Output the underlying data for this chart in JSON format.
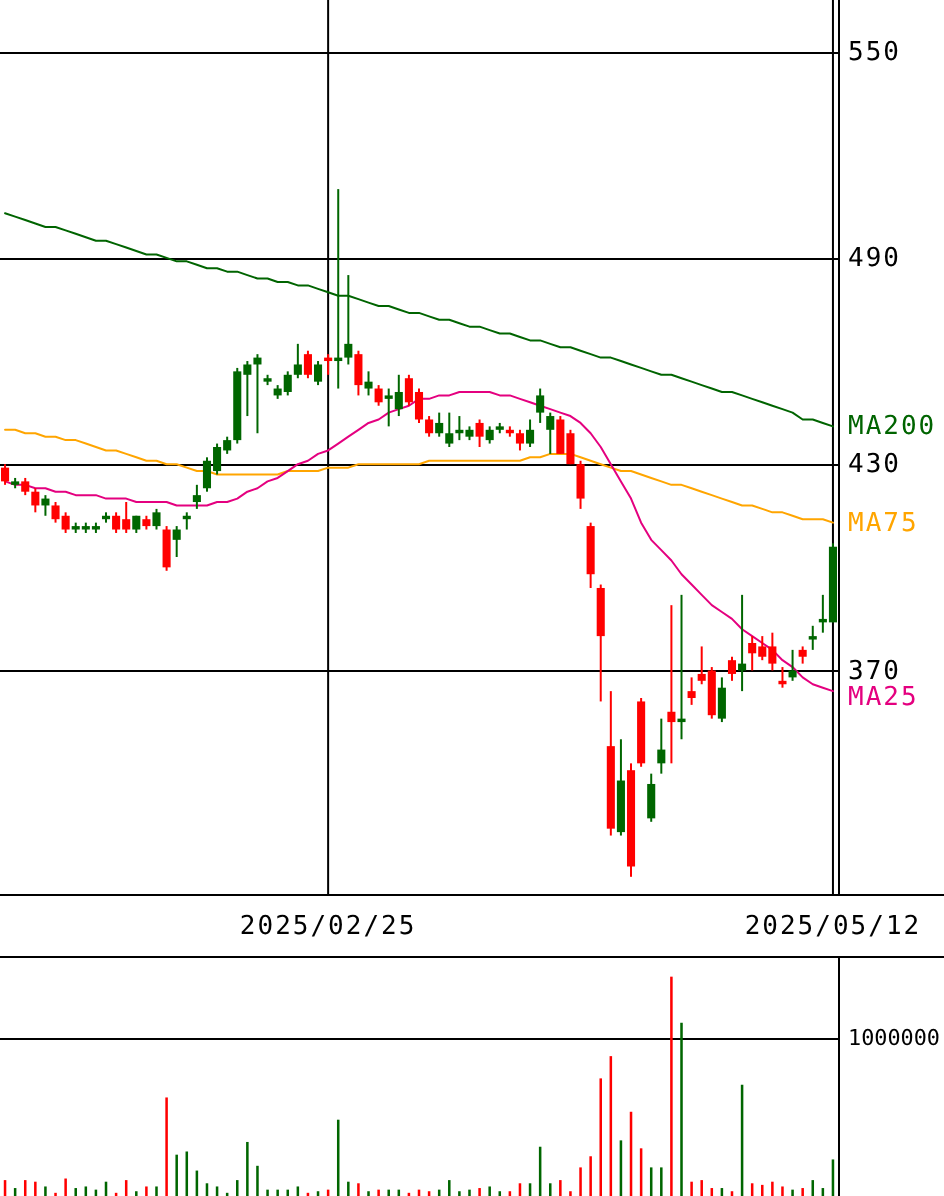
{
  "chart_data": [
    {
      "type": "candlestick",
      "categories": [
        null,
        null,
        null,
        null,
        null,
        null,
        null,
        null,
        null,
        null,
        null,
        null,
        null,
        null,
        null,
        null,
        null,
        null,
        null,
        null,
        null,
        null,
        null,
        null,
        null,
        null,
        null,
        null,
        null,
        null,
        null,
        null,
        "2025/02/25",
        null,
        null,
        null,
        null,
        null,
        null,
        null,
        null,
        null,
        null,
        null,
        null,
        null,
        null,
        null,
        null,
        null,
        null,
        null,
        null,
        null,
        null,
        null,
        null,
        null,
        null,
        null,
        null,
        null,
        null,
        null,
        null,
        null,
        null,
        null,
        null,
        null,
        null,
        null,
        null,
        null,
        null,
        null,
        null,
        null,
        null,
        null,
        null,
        null,
        "2025/05/12"
      ],
      "ohlc": [
        [
          429,
          430,
          424,
          425
        ],
        [
          424,
          426,
          423,
          425
        ],
        [
          425,
          426,
          421,
          422
        ],
        [
          422,
          423,
          416,
          418
        ],
        [
          418,
          421,
          415,
          420
        ],
        [
          418,
          419,
          413,
          414
        ],
        [
          415,
          416,
          410,
          411
        ],
        [
          411,
          413,
          410,
          412
        ],
        [
          411,
          413,
          410,
          412
        ],
        [
          411,
          413,
          410,
          412
        ],
        [
          414,
          416,
          413,
          415
        ],
        [
          415,
          416,
          410,
          411
        ],
        [
          414,
          419,
          410,
          411
        ],
        [
          411,
          415,
          410,
          415
        ],
        [
          414,
          415,
          411,
          412
        ],
        [
          412,
          417,
          411,
          416
        ],
        [
          411,
          412,
          399,
          400
        ],
        [
          408,
          412,
          403,
          411
        ],
        [
          414,
          416,
          411,
          415
        ],
        [
          419,
          424,
          417,
          421
        ],
        [
          423,
          432,
          422,
          431
        ],
        [
          428,
          436,
          427,
          435
        ],
        [
          434,
          438,
          433,
          437
        ],
        [
          437,
          458,
          436,
          457
        ],
        [
          456,
          460,
          444,
          459
        ],
        [
          459,
          462,
          439,
          461
        ],
        [
          454,
          456,
          453,
          455
        ],
        [
          450,
          453,
          449,
          452
        ],
        [
          451,
          457,
          450,
          456
        ],
        [
          456,
          465,
          455,
          459
        ],
        [
          462,
          463,
          455,
          456
        ],
        [
          454,
          460,
          453,
          459
        ],
        [
          461,
          462,
          456,
          460
        ],
        [
          460,
          510,
          452,
          461
        ],
        [
          461,
          485,
          459,
          465
        ],
        [
          462,
          463,
          450,
          453
        ],
        [
          452,
          457,
          450,
          454
        ],
        [
          452,
          453,
          447,
          448
        ],
        [
          449,
          452,
          441,
          450
        ],
        [
          446,
          456,
          444,
          451
        ],
        [
          455,
          456,
          447,
          448
        ],
        [
          451,
          452,
          442,
          443
        ],
        [
          443,
          444,
          438,
          439
        ],
        [
          439,
          445,
          438,
          442
        ],
        [
          436,
          445,
          435,
          439
        ],
        [
          439,
          444,
          437,
          440
        ],
        [
          438,
          441,
          437,
          440
        ],
        [
          442,
          443,
          435,
          438
        ],
        [
          437,
          441,
          436,
          440
        ],
        [
          440,
          442,
          439,
          441
        ],
        [
          440,
          441,
          438,
          439
        ],
        [
          439,
          440,
          434,
          436
        ],
        [
          436,
          443,
          435,
          440
        ],
        [
          445,
          452,
          442,
          450
        ],
        [
          440,
          445,
          433,
          444
        ],
        [
          443,
          444,
          433,
          433
        ],
        [
          439,
          440,
          430,
          430
        ],
        [
          430,
          431,
          417,
          420
        ],
        [
          412,
          413,
          394,
          398
        ],
        [
          394,
          395,
          361,
          380
        ],
        [
          348,
          364,
          322,
          324
        ],
        [
          323,
          350,
          322,
          338
        ],
        [
          341,
          343,
          310,
          313
        ],
        [
          361,
          362,
          342,
          343
        ],
        [
          327,
          340,
          326,
          337
        ],
        [
          343,
          356,
          340,
          347
        ],
        [
          358,
          389,
          343,
          355
        ],
        [
          355,
          392,
          350,
          356
        ],
        [
          364,
          368,
          360,
          362
        ],
        [
          369,
          377,
          366,
          367
        ],
        [
          370,
          371,
          356,
          357
        ],
        [
          356,
          368,
          355,
          365
        ],
        [
          373,
          374,
          367,
          369
        ],
        [
          370,
          392,
          364,
          372
        ],
        [
          378,
          380,
          370,
          375
        ],
        [
          377,
          380,
          373,
          374
        ],
        [
          377,
          381,
          370,
          372
        ],
        [
          367,
          371,
          365,
          366
        ],
        [
          368,
          376,
          367,
          370
        ],
        [
          376,
          377,
          372,
          374
        ],
        [
          379,
          383,
          376,
          380
        ],
        [
          384,
          392,
          381,
          385
        ],
        [
          384,
          407,
          384,
          406
        ]
      ],
      "colors": [
        "#ff0000",
        "#006600",
        "#ff0000",
        "#ff0000",
        "#006600",
        "#ff0000",
        "#ff0000",
        "#006600",
        "#006600",
        "#006600",
        "#006600",
        "#ff0000",
        "#ff0000",
        "#006600",
        "#ff0000",
        "#006600",
        "#ff0000",
        "#006600",
        "#006600",
        "#006600",
        "#006600",
        "#006600",
        "#006600",
        "#006600",
        "#006600",
        "#006600",
        "#006600",
        "#006600",
        "#006600",
        "#006600",
        "#ff0000",
        "#006600",
        "#ff0000",
        "#006600",
        "#006600",
        "#ff0000",
        "#006600",
        "#ff0000",
        "#006600",
        "#006600",
        "#ff0000",
        "#ff0000",
        "#ff0000",
        "#006600",
        "#006600",
        "#006600",
        "#006600",
        "#ff0000",
        "#006600",
        "#006600",
        "#ff0000",
        "#ff0000",
        "#006600",
        "#006600",
        "#006600",
        "#ff0000",
        "#ff0000",
        "#ff0000",
        "#ff0000",
        "#ff0000",
        "#ff0000",
        "#006600",
        "#ff0000",
        "#ff0000",
        "#006600",
        "#006600",
        "#ff0000",
        "#006600",
        "#ff0000",
        "#ff0000",
        "#ff0000",
        "#006600",
        "#ff0000",
        "#006600",
        "#ff0000",
        "#ff0000",
        "#ff0000",
        "#ff0000",
        "#006600",
        "#ff0000",
        "#006600",
        "#006600",
        "#006600"
      ],
      "series": [
        {
          "type": "line",
          "name": "MA200",
          "color": "#006400",
          "values": [
            503,
            502,
            501,
            500,
            499,
            499,
            498,
            497,
            496,
            495,
            495,
            494,
            493,
            492,
            491,
            491,
            490,
            489,
            489,
            488,
            487,
            487,
            486,
            486,
            485,
            484,
            484,
            483,
            483,
            482,
            482,
            481,
            480,
            479,
            479,
            478,
            477,
            476,
            476,
            475,
            474,
            474,
            473,
            472,
            472,
            471,
            470,
            470,
            469,
            468,
            468,
            467,
            466,
            466,
            465,
            464,
            464,
            463,
            462,
            461,
            461,
            460,
            459,
            458,
            457,
            456,
            456,
            455,
            454,
            453,
            452,
            451,
            451,
            450,
            449,
            448,
            447,
            446,
            445,
            443,
            443,
            442,
            441
          ]
        },
        {
          "type": "line",
          "name": "MA75",
          "color": "#ffa500",
          "values": [
            440,
            440,
            439,
            439,
            438,
            438,
            437,
            437,
            436,
            435,
            434,
            434,
            433,
            432,
            431,
            431,
            430,
            430,
            429,
            428,
            428,
            427,
            427,
            427,
            427,
            427,
            427,
            427,
            428,
            428,
            428,
            428,
            429,
            429,
            429,
            430,
            430,
            430,
            430,
            430,
            430,
            430,
            431,
            431,
            431,
            431,
            431,
            431,
            431,
            431,
            431,
            431,
            432,
            432,
            433,
            433,
            433,
            432,
            431,
            430,
            429,
            428,
            428,
            427,
            426,
            425,
            424,
            424,
            423,
            422,
            421,
            420,
            419,
            418,
            418,
            417,
            416,
            416,
            415,
            414,
            414,
            414,
            413
          ]
        },
        {
          "type": "line",
          "name": "MA25",
          "color": "#e4007f",
          "values": [
            425,
            424,
            424,
            423,
            423,
            422,
            422,
            421,
            421,
            421,
            420,
            420,
            420,
            419,
            419,
            419,
            419,
            418,
            418,
            418,
            418,
            419,
            419,
            420,
            422,
            423,
            425,
            426,
            428,
            430,
            431,
            433,
            434,
            436,
            438,
            440,
            442,
            443,
            445,
            446,
            447,
            449,
            449,
            450,
            450,
            451,
            451,
            451,
            451,
            450,
            450,
            449,
            448,
            447,
            446,
            445,
            444,
            442,
            439,
            435,
            430,
            425,
            420,
            413,
            408,
            405,
            402,
            398,
            395,
            392,
            389,
            387,
            385,
            382,
            380,
            378,
            376,
            373,
            371,
            368,
            366,
            365,
            364
          ]
        }
      ],
      "ylim": [
        305,
        565
      ],
      "yticks": [
        370,
        430,
        490,
        550
      ],
      "grid": true
    },
    {
      "type": "bar",
      "categories": [
        null,
        null,
        null,
        null,
        null,
        null,
        null,
        null,
        null,
        null,
        null,
        null,
        null,
        null,
        null,
        null,
        null,
        null,
        null,
        null,
        null,
        null,
        null,
        null,
        null,
        null,
        null,
        null,
        null,
        null,
        null,
        null,
        null,
        null,
        null,
        null,
        null,
        null,
        null,
        null,
        null,
        null,
        null,
        null,
        null,
        null,
        null,
        null,
        null,
        null,
        null,
        null,
        null,
        null,
        null,
        null,
        null,
        null,
        null,
        null,
        null,
        null,
        null,
        null,
        null,
        null,
        null,
        null,
        null,
        null,
        null,
        null,
        null,
        null,
        null,
        null,
        null,
        null,
        null,
        null,
        null,
        null,
        null
      ],
      "values": [
        100000,
        50000,
        100000,
        90000,
        60000,
        20000,
        110000,
        50000,
        60000,
        40000,
        90000,
        20000,
        100000,
        30000,
        60000,
        60000,
        620000,
        260000,
        280000,
        160000,
        80000,
        60000,
        20000,
        100000,
        340000,
        190000,
        40000,
        40000,
        40000,
        60000,
        20000,
        30000,
        40000,
        480000,
        90000,
        80000,
        30000,
        40000,
        40000,
        40000,
        20000,
        40000,
        30000,
        40000,
        100000,
        30000,
        40000,
        50000,
        60000,
        30000,
        30000,
        80000,
        80000,
        310000,
        80000,
        100000,
        30000,
        180000,
        250000,
        740000,
        880000,
        350000,
        530000,
        300000,
        180000,
        180000,
        1380000,
        1090000,
        90000,
        100000,
        50000,
        50000,
        30000,
        700000,
        80000,
        70000,
        90000,
        60000,
        40000,
        50000,
        100000,
        50000,
        230000
      ],
      "colors": [
        "#ff0000",
        "#006600",
        "#ff0000",
        "#ff0000",
        "#006600",
        "#ff0000",
        "#ff0000",
        "#006600",
        "#006600",
        "#006600",
        "#006600",
        "#ff0000",
        "#ff0000",
        "#006600",
        "#ff0000",
        "#006600",
        "#ff0000",
        "#006600",
        "#006600",
        "#006600",
        "#006600",
        "#006600",
        "#006600",
        "#006600",
        "#006600",
        "#006600",
        "#006600",
        "#006600",
        "#006600",
        "#006600",
        "#ff0000",
        "#006600",
        "#ff0000",
        "#006600",
        "#006600",
        "#ff0000",
        "#006600",
        "#ff0000",
        "#006600",
        "#006600",
        "#ff0000",
        "#ff0000",
        "#ff0000",
        "#006600",
        "#006600",
        "#006600",
        "#006600",
        "#ff0000",
        "#006600",
        "#006600",
        "#ff0000",
        "#ff0000",
        "#006600",
        "#006600",
        "#006600",
        "#ff0000",
        "#ff0000",
        "#ff0000",
        "#ff0000",
        "#ff0000",
        "#ff0000",
        "#006600",
        "#ff0000",
        "#ff0000",
        "#006600",
        "#006600",
        "#ff0000",
        "#006600",
        "#ff0000",
        "#ff0000",
        "#ff0000",
        "#006600",
        "#ff0000",
        "#006600",
        "#ff0000",
        "#ff0000",
        "#ff0000",
        "#ff0000",
        "#006600",
        "#ff0000",
        "#006600",
        "#006600",
        "#006600"
      ],
      "ylim": [
        0,
        1510000
      ],
      "yticks": [
        {
          "value": 0,
          "label": null
        },
        1000000
      ],
      "grid": "y"
    }
  ]
}
